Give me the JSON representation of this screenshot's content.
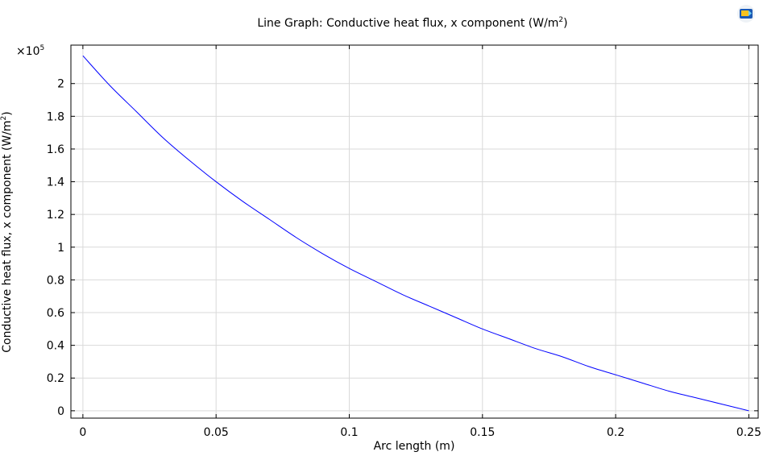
{
  "chart_data": {
    "type": "line",
    "title": "Line Graph: Conductive heat flux, x component (W/m",
    "title_sup": "2",
    "title_tail": ")",
    "xlabel": "Arc length (m)",
    "ylabel": "Conductive heat flux, x component (W/m",
    "ylabel_sup": "2",
    "ylabel_tail": ")",
    "y_multiplier": "×10",
    "y_multiplier_exp": "5",
    "xlim": [
      -0.0045,
      0.2535
    ],
    "ylim": [
      -0.045,
      2.235
    ],
    "xticks": [
      0,
      0.05,
      0.1,
      0.15,
      0.2,
      0.25
    ],
    "xtick_labels": [
      "0",
      "0.05",
      "0.1",
      "0.15",
      "0.2",
      "0.25"
    ],
    "yticks": [
      0,
      0.2,
      0.4,
      0.6,
      0.8,
      1,
      1.2,
      1.4,
      1.6,
      1.8,
      2
    ],
    "ytick_labels": [
      "0",
      "0.2",
      "0.4",
      "0.6",
      "0.8",
      "1",
      "1.2",
      "1.4",
      "1.6",
      "1.8",
      "2"
    ],
    "grid": true,
    "series": [
      {
        "color": "#0000ff",
        "x": [
          0,
          0.01,
          0.02,
          0.03,
          0.04,
          0.05,
          0.06,
          0.07,
          0.08,
          0.09,
          0.1,
          0.11,
          0.12,
          0.13,
          0.14,
          0.15,
          0.16,
          0.17,
          0.18,
          0.19,
          0.2,
          0.21,
          0.22,
          0.23,
          0.24,
          0.25
        ],
        "y": [
          2.17,
          1.99,
          1.83,
          1.67,
          1.53,
          1.4,
          1.28,
          1.17,
          1.06,
          0.96,
          0.87,
          0.79,
          0.71,
          0.64,
          0.57,
          0.5,
          0.44,
          0.38,
          0.33,
          0.27,
          0.22,
          0.17,
          0.12,
          0.08,
          0.04,
          0
        ]
      }
    ]
  }
}
